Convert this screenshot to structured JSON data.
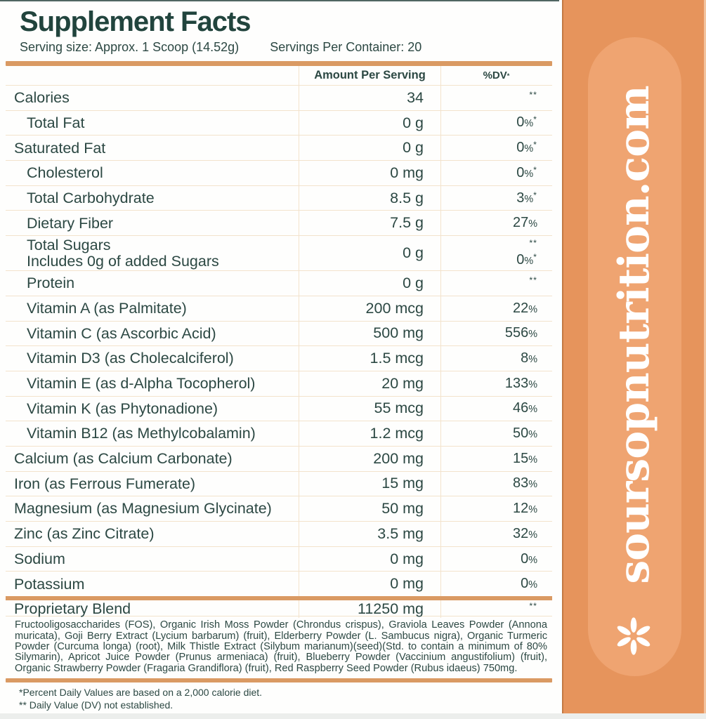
{
  "title": "Supplement Facts",
  "serving": {
    "size_label": "Serving size: Approx. 1 Scoop (14.52g)",
    "per_container_label": "Servings Per Container: 20"
  },
  "table": {
    "headers": {
      "amount": "Amount Per Serving",
      "dv": "%DV*"
    },
    "rows": [
      {
        "label": "Calories",
        "indent": 0,
        "amount": "34",
        "dv": "**"
      },
      {
        "label": "Total Fat",
        "indent": 1,
        "amount": "0 g",
        "dv": "0%*"
      },
      {
        "label": "Saturated Fat",
        "indent": 0,
        "amount": "0 g",
        "dv": "0%*"
      },
      {
        "label": "Cholesterol",
        "indent": 1,
        "amount": "0 mg",
        "dv": "0%*"
      },
      {
        "label": "Total Carbohydrate",
        "indent": 1,
        "amount": "8.5 g",
        "dv": "3%*"
      },
      {
        "label": "Dietary Fiber",
        "indent": 1,
        "amount": "7.5 g",
        "dv": "27%"
      },
      {
        "label": "Total Sugars",
        "label2": "Includes 0g of added Sugars",
        "indent": 1,
        "amount": "0 g",
        "dv": "**",
        "dv2": "0%*"
      },
      {
        "label": "Protein",
        "indent": 1,
        "amount": "0 g",
        "dv": "**"
      },
      {
        "label": "Vitamin A (as Palmitate)",
        "indent": 1,
        "amount": "200 mcg",
        "dv": "22%"
      },
      {
        "label": "Vitamin C (as Ascorbic Acid)",
        "indent": 1,
        "amount": "500 mg",
        "dv": "556%"
      },
      {
        "label": "Vitamin D3 (as Cholecalciferol)",
        "indent": 1,
        "amount": "1.5 mcg",
        "dv": "8%"
      },
      {
        "label": "Vitamin E (as d-Alpha Tocopherol)",
        "indent": 1,
        "amount": "20 mg",
        "dv": "133%"
      },
      {
        "label": "Vitamin K (as Phytonadione)",
        "indent": 1,
        "amount": "55 mcg",
        "dv": "46%"
      },
      {
        "label": "Vitamin B12 (as Methylcobalamin)",
        "indent": 1,
        "amount": "1.2 mcg",
        "dv": "50%"
      },
      {
        "label": "Calcium (as Calcium Carbonate)",
        "indent": 0,
        "amount": "200 mg",
        "dv": "15%"
      },
      {
        "label": "Iron (as Ferrous Fumerate)",
        "indent": 0,
        "amount": "15 mg",
        "dv": "83%"
      },
      {
        "label": "Magnesium (as Magnesium Glycinate)",
        "indent": 0,
        "amount": "50 mg",
        "dv": "12%"
      },
      {
        "label": "Zinc (as Zinc Citrate)",
        "indent": 0,
        "amount": "3.5 mg",
        "dv": "32%"
      },
      {
        "label": "Sodium",
        "indent": 0,
        "amount": "0 mg",
        "dv": "0%"
      },
      {
        "label": "Potassium",
        "indent": 0,
        "amount": "0 mg",
        "dv": "0%"
      },
      {
        "label": "Proprietary Blend",
        "indent": 0,
        "amount": "11250 mg",
        "dv": "**",
        "thick_top": true,
        "blend": true
      }
    ]
  },
  "ingredients": "Fructooligosaccharides (FOS), Organic Irish Moss Powder (Chrondus crispus), Graviola Leaves Powder (Annona muricata), Goji Berry Extract (Lycium barbarum) (fruit), Elderberry Powder (L. Sambucus nigra), Organic Turmeric Powder (Curcuma longa) (root), Milk Thistle Extract (Silybum marianum)(seed)(Std. to contain a minimum of 80% Silymarin), Apricot Juice Powder (Prunus armeniaca) (fruit), Blueberry Powder (Vaccinium angustifolium) (fruit), Organic Strawberry Powder (Fragaria Grandiflora) (fruit), Red Raspberry Seed Powder (Rubus idaeus) 750mg.",
  "footnotes": [
    "*Percent Daily Values are based on a 2,000 calorie diet.",
    "** Daily Value (DV) not established."
  ],
  "sidebar": {
    "website": "soursopnutrition.com",
    "star_icon": "six-petal-asterisk"
  },
  "colors": {
    "accent_bar": "#DA9A63",
    "sidebar_orange": "#E6945C",
    "capsule_orange": "#EFA471",
    "text_teal": "#2C4843",
    "row_line": "#F3E3CC",
    "bottom_band": "#ECEEEC",
    "sidebar_text": "#FFFFFF"
  }
}
